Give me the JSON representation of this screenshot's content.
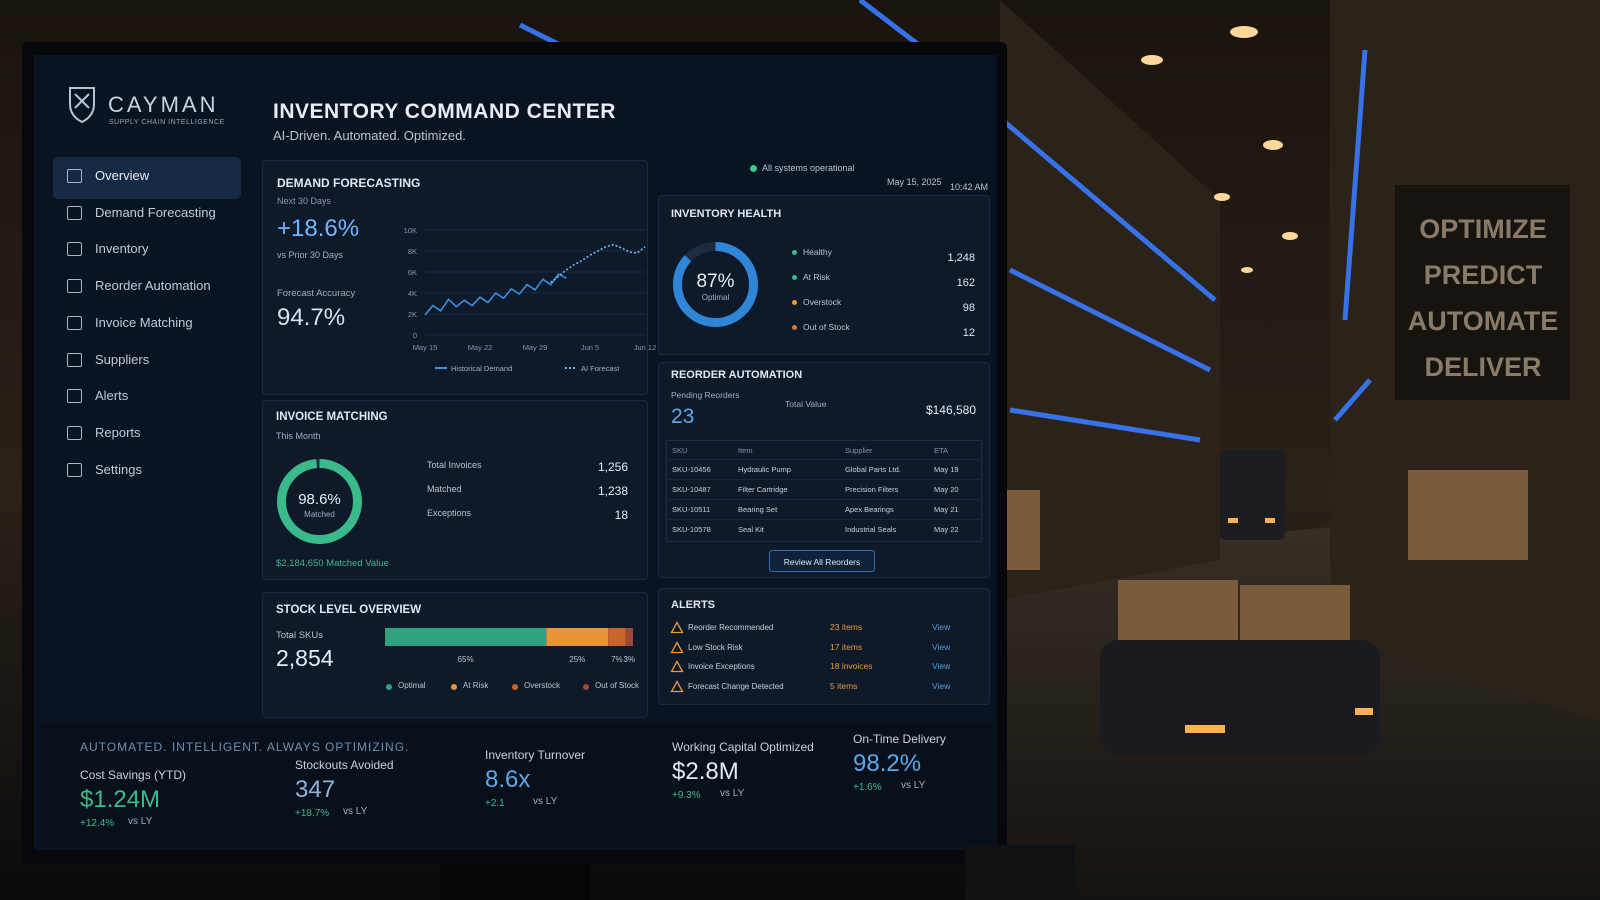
{
  "brand": {
    "name": "CAYMAN",
    "tagline": "SUPPLY CHAIN INTELLIGENCE"
  },
  "nav": [
    "Overview",
    "Demand Forecasting",
    "Inventory",
    "Reorder Automation",
    "Invoice Matching",
    "Suppliers",
    "Alerts",
    "Reports",
    "Settings"
  ],
  "header": {
    "title": "INVENTORY COMMAND CENTER",
    "subtitle": "AI-Driven. Automated. Optimized.",
    "status": "All systems operational",
    "date": "May 15, 2025",
    "time": "10:42 AM"
  },
  "demand_forecasting": {
    "title": "DEMAND FORECASTING",
    "period": "Next 30 Days",
    "change": "+18.6%",
    "change_note": "vs Prior 30 Days",
    "accuracy_label": "Forecast Accuracy",
    "accuracy": "94.7%",
    "chart": {
      "type": "line",
      "categories": [
        "May 15",
        null,
        null,
        null,
        null,
        null,
        null,
        "May 22",
        null,
        null,
        null,
        null,
        null,
        null,
        "May 29",
        null,
        null,
        null,
        null,
        null,
        null,
        "Jun 5",
        null,
        null,
        null,
        null,
        null,
        null,
        "Jun 12"
      ],
      "ylim": [
        0,
        10000
      ],
      "yticks": [
        0,
        {
          "value": 2000,
          "label": "2K"
        },
        {
          "value": 4000,
          "label": "4K"
        },
        {
          "value": 6000,
          "label": "6K"
        },
        {
          "value": 8000,
          "label": "8K"
        },
        {
          "value": 10000,
          "label": "10K"
        }
      ],
      "grid": true,
      "series": [
        {
          "name": "Historical Demand",
          "color": "#3b8fe0",
          "dash": false,
          "values": [
            1900,
            2800,
            2300,
            3400,
            2700,
            3300,
            2800,
            3600,
            3100,
            4000,
            3500,
            4400,
            3900,
            4800,
            4300,
            5300,
            4800,
            5800,
            5400,
            null,
            null,
            null,
            null,
            null,
            null,
            null,
            null,
            null,
            null
          ]
        },
        {
          "name": "AI Forecast",
          "color": "#74b9ef",
          "dash": true,
          "values": [
            null,
            null,
            null,
            null,
            null,
            null,
            null,
            null,
            null,
            null,
            null,
            null,
            null,
            null,
            null,
            null,
            5000,
            5600,
            6200,
            6700,
            7100,
            7600,
            8000,
            8400,
            8600,
            8300,
            7900,
            7800,
            8400
          ]
        }
      ]
    }
  },
  "inventory_health": {
    "title": "INVENTORY HEALTH",
    "gauge": {
      "value": 87,
      "label": "87%"
    },
    "gauge_caption": "Optimal",
    "gauge_color": "#2f86d6",
    "items": [
      {
        "label": "Healthy",
        "value": "1,248",
        "color": "#3cb98a"
      },
      {
        "label": "At Risk",
        "value": "162",
        "color": "#3cb98a"
      },
      {
        "label": "Overstock",
        "value": "98",
        "color": "#e89a3c"
      },
      {
        "label": "Out of Stock",
        "value": "12",
        "color": "#d9733a"
      }
    ]
  },
  "reorder_automation": {
    "title": "REORDER AUTOMATION",
    "pending_label": "Pending Reorders",
    "pending": "23",
    "total_label": "Total Value",
    "total": "$146,580",
    "table": {
      "columns": [
        "SKU",
        "Item",
        "Supplier",
        "ETA"
      ],
      "rows": [
        [
          "SKU-10456",
          "Hydraulic Pump",
          "Global Parts Ltd.",
          "May 19"
        ],
        [
          "SKU-10487",
          "Filter Cartridge",
          "Precision Filters",
          "May 20"
        ],
        [
          "SKU-10511",
          "Bearing Set",
          "Apex Bearings",
          "May 21"
        ],
        [
          "SKU-10578",
          "Seal Kit",
          "Industrial Seals",
          "May 22"
        ]
      ]
    },
    "button": "Review All Reorders"
  },
  "invoice_matching": {
    "title": "INVOICE MATCHING",
    "period": "This Month",
    "gauge": {
      "value": 98.6,
      "label": "98.6%"
    },
    "gauge_caption": "Matched",
    "gauge_color": "#3ab98a",
    "stats": [
      {
        "label": "Total Invoices",
        "value": "1,256"
      },
      {
        "label": "Matched",
        "value": "1,238"
      },
      {
        "label": "Exceptions",
        "value": "18"
      }
    ],
    "matched_value": "$2,184,650 Matched Value"
  },
  "stock_level": {
    "title": "STOCK LEVEL OVERVIEW",
    "total_label": "Total SKUs",
    "total": "2,854",
    "segments": [
      {
        "name": "Optimal",
        "value": 65,
        "label": "65%",
        "color": "#2fa37f"
      },
      {
        "name": "At Risk",
        "value": 25,
        "label": "25%",
        "color": "#e8953a"
      },
      {
        "name": "Overstock",
        "value": 7,
        "label": "7%",
        "color": "#c8642e"
      },
      {
        "name": "Out of Stock",
        "value": 3,
        "label": "3%",
        "color": "#9a4a35"
      }
    ]
  },
  "alerts": {
    "title": "ALERTS",
    "items": [
      {
        "label": "Reorder Recommended",
        "count": "23 items",
        "action": "View"
      },
      {
        "label": "Low Stock Risk",
        "count": "17 items",
        "action": "View"
      },
      {
        "label": "Invoice Exceptions",
        "count": "18 invoices",
        "action": "View"
      },
      {
        "label": "Forecast Change Detected",
        "count": "5 items",
        "action": "View"
      }
    ]
  },
  "footer": {
    "tagline": "AUTOMATED. INTELLIGENT. ALWAYS OPTIMIZING.",
    "kpis": [
      {
        "label": "Cost Savings (YTD)",
        "value": "$1.24M",
        "change": "+12.4%",
        "note": "vs LY",
        "color": "#3dbb8a"
      },
      {
        "label": "Stockouts Avoided",
        "value": "347",
        "change": "+18.7%",
        "note": "vs LY",
        "color": "#8fb3d9"
      },
      {
        "label": "Inventory Turnover",
        "value": "8.6x",
        "change": "+2.1",
        "note": "vs LY",
        "color": "#5fa8e8"
      },
      {
        "label": "Working Capital Optimized",
        "value": "$2.8M",
        "change": "+9.3%",
        "note": "vs LY",
        "color": "#e3eaf2"
      },
      {
        "label": "On-Time Delivery",
        "value": "98.2%",
        "change": "+1.6%",
        "note": "vs LY",
        "color": "#5fa8e8"
      }
    ]
  },
  "background_sign": [
    "OPTIMIZE",
    "PREDICT",
    "AUTOMATE",
    "DELIVER"
  ]
}
